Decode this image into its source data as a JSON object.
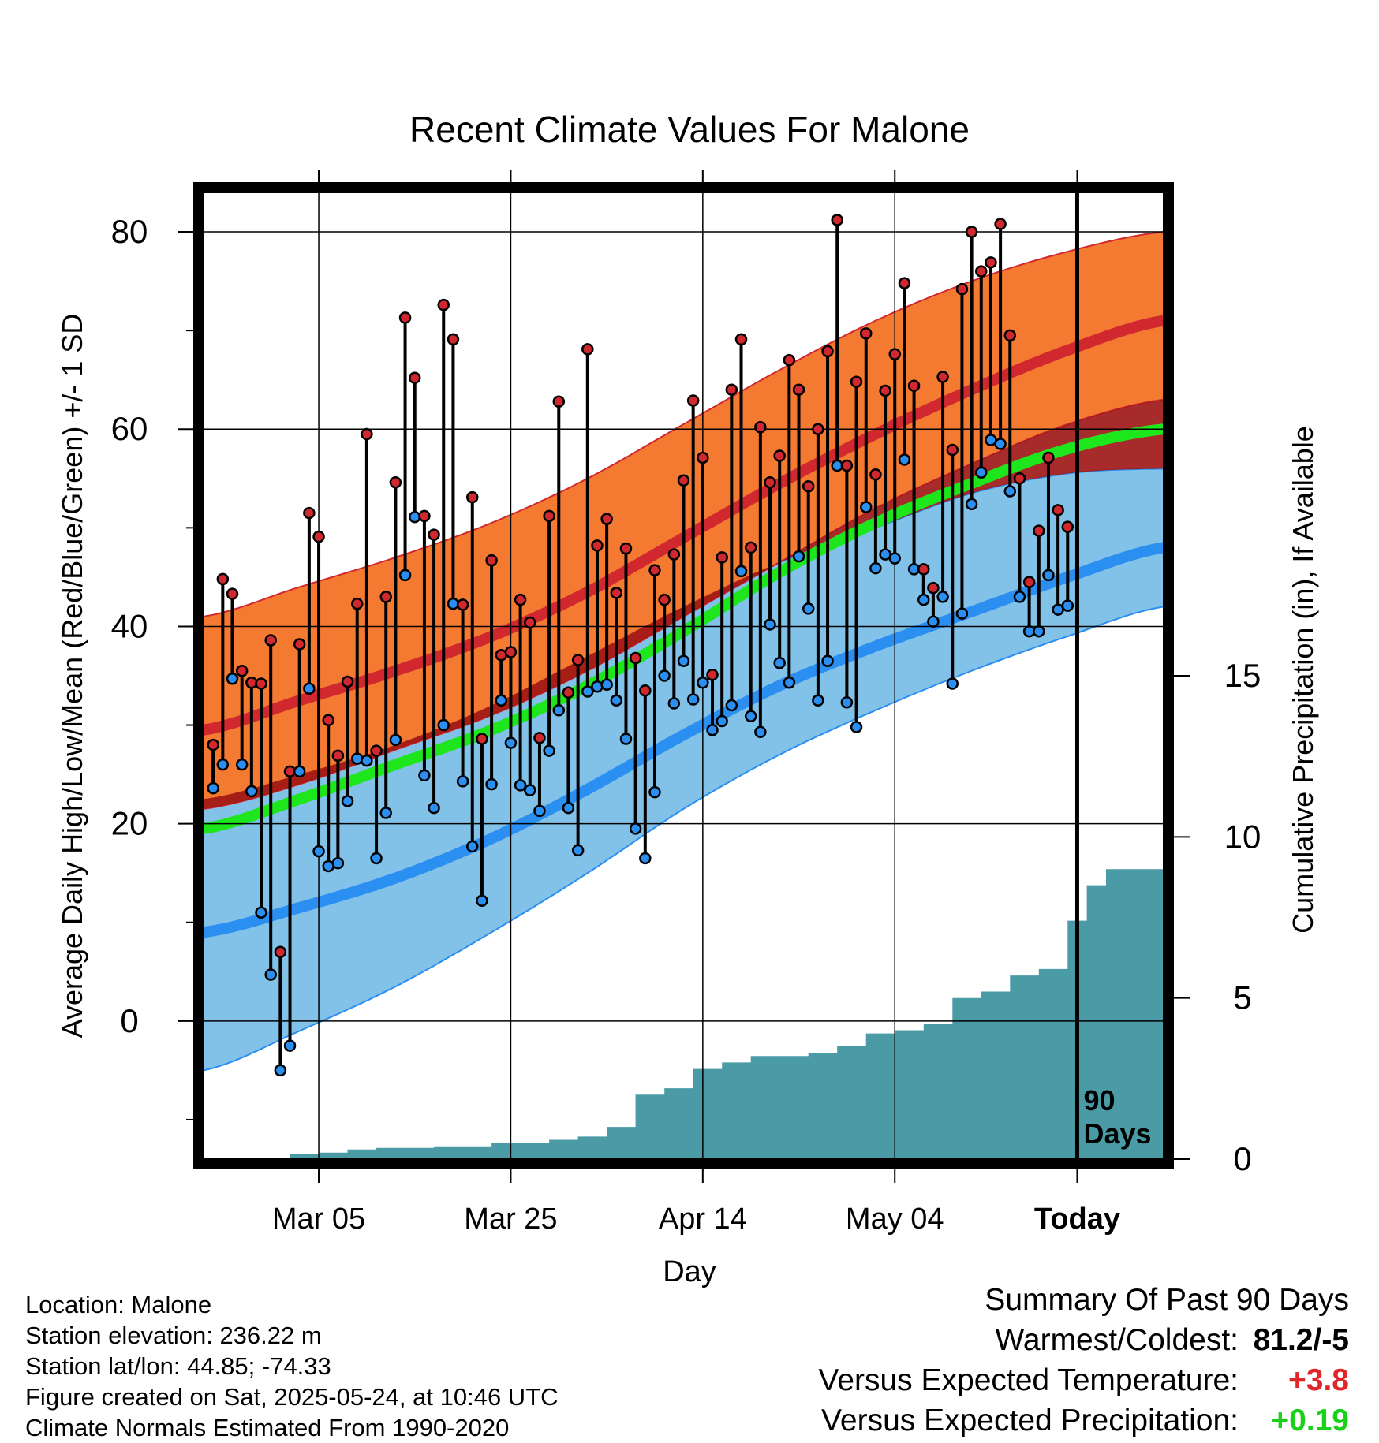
{
  "chart_data": {
    "type": "line",
    "title": "Recent Climate Values For Malone",
    "xlabel": "Day",
    "ylabel": "Average Daily High/Low/Mean (Red/Blue/Green) +/- 1 SD",
    "ylabel_right": "Cumulative Precipitation (in), If Available",
    "x_tick_labels": [
      "Mar 05",
      "Mar 25",
      "Apr 14",
      "May 04",
      "Today"
    ],
    "y_ticks": [
      "0",
      "20",
      "40",
      "60",
      "80"
    ],
    "y2_ticks": [
      "0",
      "5",
      "10",
      "15"
    ],
    "ylim": [
      -14,
      84
    ],
    "y2lim": [
      0,
      30
    ],
    "x_range_days": [
      -91,
      9
    ],
    "grid": true,
    "today_label_lines": [
      "90",
      "Days"
    ],
    "colors": {
      "high_band": "#f47a32",
      "high_mean": "#d1282f",
      "low_band": "#82c2e8",
      "low_mean": "#2a8ff0",
      "mean": "#1de61d",
      "overlap": "#9e1414",
      "precip": "#4a9ba6",
      "high_marker": "#d1282f",
      "low_marker": "#2a8ff0"
    },
    "normals": {
      "days": [
        -91,
        -81,
        -71,
        -61,
        -51,
        -41,
        -31,
        -21,
        -11,
        -1,
        9
      ],
      "high_mean": [
        29.5,
        32.5,
        35.5,
        39.0,
        43.5,
        49.0,
        54.5,
        59.5,
        64.0,
        68.0,
        71.0
      ],
      "high_upper": [
        41.0,
        44.0,
        47.0,
        50.5,
        55.0,
        60.5,
        66.0,
        71.0,
        75.0,
        78.0,
        80.0
      ],
      "high_lower": [
        21.5,
        24.0,
        27.5,
        31.0,
        35.5,
        41.0,
        46.5,
        52.0,
        56.5,
        60.5,
        63.0
      ],
      "mean": [
        19.5,
        22.5,
        26.0,
        29.5,
        34.0,
        39.5,
        45.5,
        50.5,
        54.5,
        58.0,
        60.0
      ],
      "low_mean": [
        9.0,
        11.5,
        14.5,
        18.5,
        23.5,
        29.0,
        34.0,
        38.0,
        41.5,
        45.0,
        48.0
      ],
      "low_upper": [
        22.5,
        25.0,
        28.0,
        32.0,
        37.0,
        42.0,
        46.5,
        50.0,
        53.5,
        55.5,
        56.0
      ],
      "low_lower": [
        -5.0,
        -1.0,
        3.5,
        9.0,
        15.0,
        21.5,
        27.0,
        31.5,
        35.5,
        39.0,
        42.0
      ]
    },
    "series": [
      {
        "name": "High",
        "values": [
          28.0,
          44.8,
          43.3,
          35.5,
          34.3,
          34.2,
          38.6,
          7.0,
          25.3,
          38.2,
          51.5,
          49.1,
          30.5,
          26.9,
          34.4,
          42.3,
          59.5,
          27.4,
          43.0,
          54.6,
          71.3,
          65.2,
          51.2,
          49.3,
          72.6,
          69.1,
          42.2,
          53.1,
          28.6,
          46.7,
          37.1,
          37.4,
          42.7,
          40.4,
          28.7,
          51.2,
          62.8,
          33.3,
          36.6,
          68.1,
          48.2,
          50.9,
          43.4,
          47.9,
          36.8,
          33.5,
          45.7,
          42.7,
          47.3,
          54.8,
          62.9,
          57.1,
          35.1,
          47.0,
          64.0,
          69.1,
          48.0,
          60.2,
          54.6,
          57.3,
          67.0,
          64.0,
          54.2,
          60.0,
          67.9,
          81.2,
          56.3,
          64.8,
          69.7,
          55.4,
          63.9,
          67.6,
          74.8,
          64.4,
          45.8,
          43.9,
          65.3,
          57.9,
          74.2,
          80.0,
          76.0,
          76.9,
          80.8,
          69.5,
          55.0,
          44.5,
          49.7,
          57.1,
          51.8,
          50.1
        ]
      },
      {
        "name": "Low",
        "values": [
          23.6,
          26.0,
          34.7,
          26.0,
          23.3,
          11.0,
          4.7,
          -5.0,
          -2.5,
          25.3,
          33.7,
          17.2,
          15.7,
          16.0,
          22.3,
          26.6,
          26.4,
          16.5,
          21.1,
          28.5,
          45.2,
          51.1,
          24.9,
          21.6,
          30.0,
          42.3,
          24.3,
          17.7,
          12.2,
          24.0,
          32.5,
          28.2,
          23.9,
          23.4,
          21.3,
          27.4,
          31.5,
          21.6,
          17.3,
          33.4,
          33.9,
          34.1,
          32.5,
          28.6,
          19.5,
          16.5,
          23.2,
          35.0,
          32.2,
          36.5,
          32.6,
          34.3,
          29.5,
          30.4,
          32.0,
          45.6,
          30.9,
          29.3,
          40.2,
          36.3,
          34.3,
          47.1,
          41.8,
          32.5,
          36.5,
          56.3,
          32.3,
          29.8,
          52.1,
          45.9,
          47.3,
          46.9,
          56.9,
          45.8,
          42.7,
          40.5,
          43.0,
          34.2,
          41.3,
          52.4,
          55.6,
          58.9,
          58.5,
          53.7,
          43.0,
          39.5,
          39.5,
          45.2,
          41.7,
          42.1
        ]
      },
      {
        "name": "Cumulative Precipitation",
        "x": [
          -91,
          -85,
          -82,
          -79,
          -76,
          -73,
          -70,
          -67,
          -64,
          -61,
          -58,
          -55,
          -52,
          -49,
          -46,
          -43,
          -40,
          -37,
          -34,
          -31,
          -28,
          -25,
          -22,
          -19,
          -16,
          -13,
          -10,
          -7,
          -4,
          -1,
          1,
          3,
          9
        ],
        "values": [
          0.0,
          0.0,
          0.15,
          0.2,
          0.3,
          0.35,
          0.35,
          0.4,
          0.4,
          0.5,
          0.5,
          0.6,
          0.7,
          1.0,
          2.0,
          2.2,
          2.8,
          3.0,
          3.2,
          3.2,
          3.3,
          3.5,
          3.9,
          4.0,
          4.2,
          5.0,
          5.2,
          5.7,
          5.9,
          7.4,
          8.5,
          9.0,
          9.0
        ]
      }
    ]
  },
  "info": {
    "location": "Location: Malone",
    "elevation": "Station elevation: 236.22 m",
    "latlon": "Station lat/lon: 44.85; -74.33",
    "created": "Figure created on Sat, 2025-05-24, at 10:46 UTC",
    "normals": "Climate Normals Estimated From 1990-2020"
  },
  "summary": {
    "title": "Summary Of Past 90 Days",
    "rows": [
      {
        "label": "Warmest/Coldest:",
        "value": "81.2/-5",
        "color": "#000000"
      },
      {
        "label": "Versus Expected Temperature:",
        "value": "+3.8",
        "color": "#e0262b"
      },
      {
        "label": "Versus Expected Precipitation:",
        "value": "+0.19",
        "color": "#1ad11a"
      }
    ]
  }
}
